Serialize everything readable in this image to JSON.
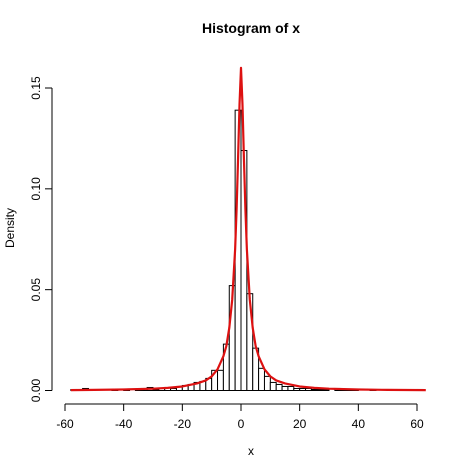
{
  "chart_data": {
    "type": "bar",
    "title": "Histogram of x",
    "xlabel": "x",
    "ylabel": "Density",
    "xlim": [
      -60,
      63
    ],
    "ylim": [
      0,
      0.16
    ],
    "x_ticks": [
      -60,
      -40,
      -20,
      0,
      20,
      40,
      60
    ],
    "x_tick_labels": [
      "-60",
      "-40",
      "-20",
      "0",
      "20",
      "40",
      "60"
    ],
    "y_ticks": [
      0,
      0.05,
      0.1,
      0.15
    ],
    "y_tick_labels": [
      "0.00",
      "0.05",
      "0.10",
      "0.15"
    ],
    "bin_width": 2,
    "bins": [
      {
        "x0": -58,
        "x1": -56,
        "density": 0.0005
      },
      {
        "x0": -56,
        "x1": -54,
        "density": 0.0
      },
      {
        "x0": -54,
        "x1": -52,
        "density": 0.001
      },
      {
        "x0": -52,
        "x1": -50,
        "density": 0.0
      },
      {
        "x0": -50,
        "x1": -48,
        "density": 0.0
      },
      {
        "x0": -48,
        "x1": -46,
        "density": 0.0
      },
      {
        "x0": -46,
        "x1": -44,
        "density": 0.0
      },
      {
        "x0": -44,
        "x1": -42,
        "density": 0.0005
      },
      {
        "x0": -42,
        "x1": -40,
        "density": 0.0
      },
      {
        "x0": -40,
        "x1": -38,
        "density": 0.0005
      },
      {
        "x0": -38,
        "x1": -36,
        "density": 0.0
      },
      {
        "x0": -36,
        "x1": -34,
        "density": 0.0005
      },
      {
        "x0": -34,
        "x1": -32,
        "density": 0.001
      },
      {
        "x0": -32,
        "x1": -30,
        "density": 0.0015
      },
      {
        "x0": -30,
        "x1": -28,
        "density": 0.0005
      },
      {
        "x0": -28,
        "x1": -26,
        "density": 0.001
      },
      {
        "x0": -26,
        "x1": -24,
        "density": 0.0015
      },
      {
        "x0": -24,
        "x1": -22,
        "density": 0.001
      },
      {
        "x0": -22,
        "x1": -20,
        "density": 0.002
      },
      {
        "x0": -20,
        "x1": -18,
        "density": 0.0025
      },
      {
        "x0": -18,
        "x1": -16,
        "density": 0.003
      },
      {
        "x0": -16,
        "x1": -14,
        "density": 0.004
      },
      {
        "x0": -14,
        "x1": -12,
        "density": 0.0045
      },
      {
        "x0": -12,
        "x1": -10,
        "density": 0.006
      },
      {
        "x0": -10,
        "x1": -8,
        "density": 0.01
      },
      {
        "x0": -8,
        "x1": -6,
        "density": 0.01
      },
      {
        "x0": -6,
        "x1": -4,
        "density": 0.023
      },
      {
        "x0": -4,
        "x1": -2,
        "density": 0.052
      },
      {
        "x0": -2,
        "x1": 0,
        "density": 0.139
      },
      {
        "x0": 0,
        "x1": 2,
        "density": 0.119
      },
      {
        "x0": 2,
        "x1": 4,
        "density": 0.048
      },
      {
        "x0": 4,
        "x1": 6,
        "density": 0.021
      },
      {
        "x0": 6,
        "x1": 8,
        "density": 0.011
      },
      {
        "x0": 8,
        "x1": 10,
        "density": 0.007
      },
      {
        "x0": 10,
        "x1": 12,
        "density": 0.004
      },
      {
        "x0": 12,
        "x1": 14,
        "density": 0.003
      },
      {
        "x0": 14,
        "x1": 16,
        "density": 0.002
      },
      {
        "x0": 16,
        "x1": 18,
        "density": 0.002
      },
      {
        "x0": 18,
        "x1": 20,
        "density": 0.001
      },
      {
        "x0": 20,
        "x1": 22,
        "density": 0.001
      },
      {
        "x0": 22,
        "x1": 24,
        "density": 0.001
      },
      {
        "x0": 24,
        "x1": 26,
        "density": 0.0005
      },
      {
        "x0": 26,
        "x1": 28,
        "density": 0.0005
      },
      {
        "x0": 28,
        "x1": 30,
        "density": 0.0005
      },
      {
        "x0": 30,
        "x1": 32,
        "density": 0.0
      },
      {
        "x0": 32,
        "x1": 34,
        "density": 0.001
      },
      {
        "x0": 34,
        "x1": 36,
        "density": 0.0005
      },
      {
        "x0": 36,
        "x1": 38,
        "density": 0.0005
      },
      {
        "x0": 38,
        "x1": 40,
        "density": 0.0005
      },
      {
        "x0": 40,
        "x1": 42,
        "density": 0.0
      },
      {
        "x0": 42,
        "x1": 44,
        "density": 0.0
      },
      {
        "x0": 44,
        "x1": 46,
        "density": 0.0005
      },
      {
        "x0": 46,
        "x1": 48,
        "density": 0.0
      },
      {
        "x0": 48,
        "x1": 50,
        "density": 0.0
      },
      {
        "x0": 50,
        "x1": 52,
        "density": 0.0
      },
      {
        "x0": 52,
        "x1": 54,
        "density": 0.0
      },
      {
        "x0": 54,
        "x1": 56,
        "density": 0.0
      },
      {
        "x0": 56,
        "x1": 58,
        "density": 0.0
      },
      {
        "x0": 58,
        "x1": 60,
        "density": 0.0
      },
      {
        "x0": 60,
        "x1": 62,
        "density": 0.0005
      }
    ],
    "density_curve": {
      "x": [
        -58,
        -50,
        -40,
        -30,
        -25,
        -20,
        -15,
        -12,
        -10,
        -8,
        -6,
        -5,
        -4,
        -3,
        -2,
        -1.5,
        -1,
        -0.5,
        0,
        0.5,
        1,
        1.5,
        2,
        3,
        4,
        5,
        6,
        8,
        10,
        12,
        15,
        20,
        25,
        30,
        40,
        50,
        63
      ],
      "y": [
        0.0002,
        0.0003,
        0.0005,
        0.0009,
        0.0013,
        0.002,
        0.0035,
        0.005,
        0.007,
        0.0105,
        0.017,
        0.022,
        0.031,
        0.045,
        0.07,
        0.09,
        0.115,
        0.142,
        0.16,
        0.142,
        0.115,
        0.09,
        0.07,
        0.045,
        0.031,
        0.022,
        0.017,
        0.0105,
        0.007,
        0.005,
        0.0035,
        0.002,
        0.0013,
        0.0009,
        0.0005,
        0.0003,
        0.0002
      ]
    },
    "colors": {
      "bar_fill": "#ffffff",
      "bar_stroke": "#000000",
      "curve": "#dd1111"
    },
    "grid": false
  }
}
